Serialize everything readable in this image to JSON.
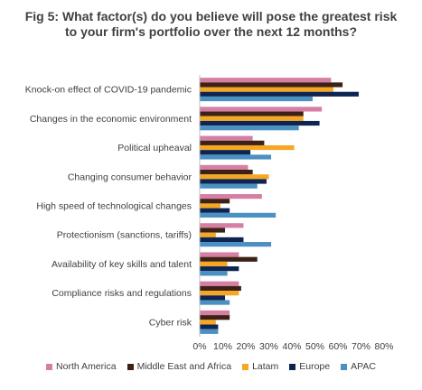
{
  "chart_data": {
    "type": "bar",
    "orientation": "horizontal",
    "title": "Fig 5: What factor(s) do you believe will pose the greatest risk to your firm's portfolio over the next 12 months?",
    "categories": [
      "Knock-on effect of COVID-19 pandemic",
      "Changes in the economic environment",
      "Political upheaval",
      "Changing consumer behavior",
      "High speed of technological changes",
      "Protectionism (sanctions, tariffs)",
      "Availability of key skills and talent",
      "Compliance risks and regulations",
      "Cyber risk"
    ],
    "series": [
      {
        "name": "North America",
        "color": "#D67FA4",
        "values": [
          57,
          53,
          23,
          21,
          27,
          19,
          17,
          17,
          13
        ]
      },
      {
        "name": "Middle East and Africa",
        "color": "#3E2116",
        "values": [
          62,
          45,
          28,
          23,
          13,
          11,
          25,
          18,
          13
        ]
      },
      {
        "name": "Latam",
        "color": "#F5A623",
        "values": [
          58,
          45,
          41,
          30,
          9,
          7,
          12,
          17,
          7
        ]
      },
      {
        "name": "Europe",
        "color": "#0E2452",
        "values": [
          69,
          52,
          22,
          29,
          13,
          19,
          17,
          11,
          8
        ]
      },
      {
        "name": "APAC",
        "color": "#4A90C2",
        "values": [
          49,
          43,
          31,
          25,
          33,
          31,
          12,
          13,
          8
        ]
      }
    ],
    "xlim": [
      0,
      80
    ],
    "xticks": [
      "0%",
      "10%",
      "20%",
      "30%",
      "40%",
      "50%",
      "60%",
      "70%",
      "80%"
    ],
    "grid": false,
    "legend_position": "bottom"
  }
}
